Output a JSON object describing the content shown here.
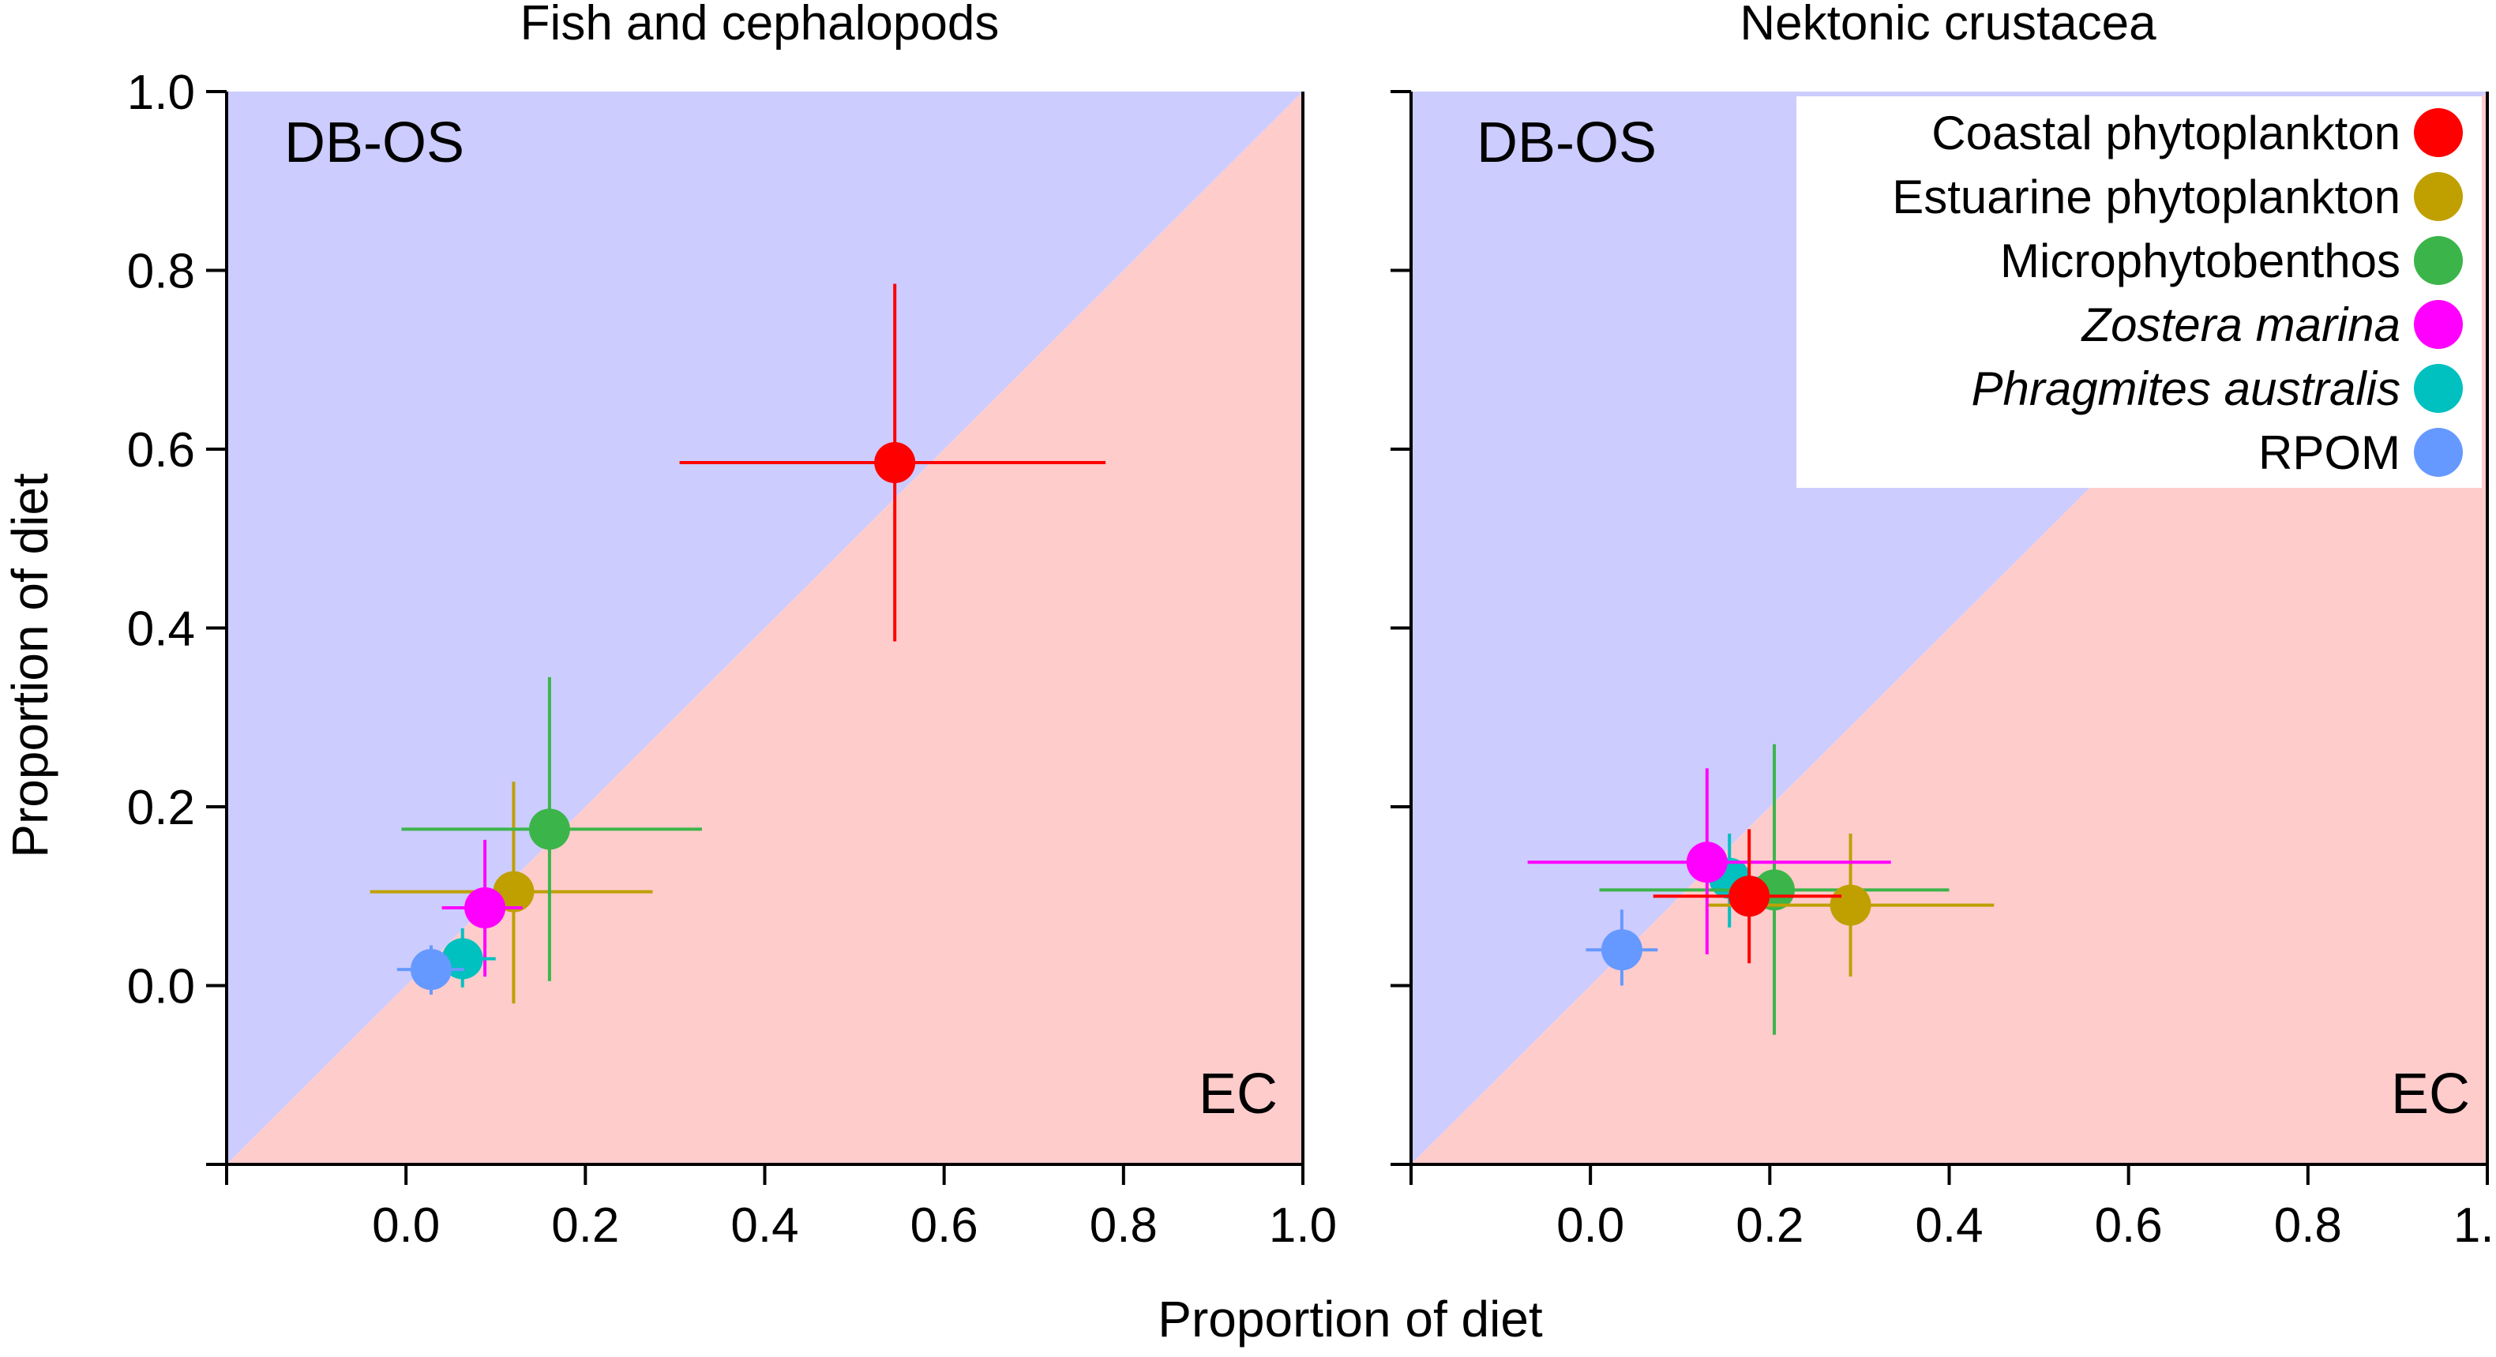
{
  "x_axis_label": "Proportion of diet",
  "y_axis_label": "Proportion of diet",
  "axis_ticks": [
    "0.0",
    "0.2",
    "0.4",
    "0.6",
    "0.8",
    "1.0"
  ],
  "legend": [
    {
      "name": "Coastal phytoplankton",
      "color": "#ff0000",
      "italic": false
    },
    {
      "name": "Estuarine phytoplankton",
      "color": "#bfa000",
      "italic": false
    },
    {
      "name": "Microphytobenthos",
      "color": "#3bb54a",
      "italic": false
    },
    {
      "name": "Zostera marina",
      "color": "#ff00ff",
      "italic": true
    },
    {
      "name": "Phragmites australis",
      "color": "#00c0c0",
      "italic": true
    },
    {
      "name": "RPOM",
      "color": "#6699ff",
      "italic": false
    }
  ],
  "chart_data": [
    {
      "type": "scatter",
      "title": "Fish and cephalopods",
      "xlabel": "Proportion of diet",
      "ylabel": "Proportion of diet",
      "xlim": [
        -0.2,
        1.0
      ],
      "ylim": [
        -0.2,
        1.0
      ],
      "region_above_label": "DB-OS",
      "region_below_label": "EC",
      "region_above_color": "#ccccff",
      "region_below_color": "#ffcccc",
      "points": [
        {
          "series": "Coastal phytoplankton",
          "x": 0.545,
          "y": 0.585,
          "x_lo": 0.305,
          "x_hi": 0.78,
          "y_lo": 0.385,
          "y_hi": 0.785
        },
        {
          "series": "Estuarine phytoplankton",
          "x": 0.12,
          "y": 0.105,
          "x_lo": -0.04,
          "x_hi": 0.275,
          "y_lo": -0.02,
          "y_hi": 0.228
        },
        {
          "series": "Microphytobenthos",
          "x": 0.16,
          "y": 0.175,
          "x_lo": -0.005,
          "x_hi": 0.33,
          "y_lo": 0.005,
          "y_hi": 0.345
        },
        {
          "series": "Zostera marina",
          "x": 0.088,
          "y": 0.087,
          "x_lo": 0.04,
          "x_hi": 0.13,
          "y_lo": 0.01,
          "y_hi": 0.163
        },
        {
          "series": "Phragmites australis",
          "x": 0.063,
          "y": 0.03,
          "x_lo": 0.04,
          "x_hi": 0.1,
          "y_lo": -0.002,
          "y_hi": 0.064
        },
        {
          "series": "RPOM",
          "x": 0.028,
          "y": 0.018,
          "x_lo": -0.01,
          "x_hi": 0.065,
          "y_lo": -0.01,
          "y_hi": 0.045
        }
      ]
    },
    {
      "type": "scatter",
      "title": "Nektonic crustacea",
      "xlabel": "Proportion of diet",
      "ylabel": "",
      "xlim": [
        -0.2,
        1.0
      ],
      "ylim": [
        -0.2,
        1.0
      ],
      "region_above_label": "DB-OS",
      "region_below_label": "EC",
      "region_above_color": "#ccccff",
      "region_below_color": "#ffcccc",
      "points": [
        {
          "series": "RPOM",
          "x": 0.035,
          "y": 0.04,
          "x_lo": -0.005,
          "x_hi": 0.075,
          "y_lo": 0.0,
          "y_hi": 0.085
        },
        {
          "series": "Phragmites australis",
          "x": 0.155,
          "y": 0.12,
          "x_lo": 0.12,
          "x_hi": 0.195,
          "y_lo": 0.065,
          "y_hi": 0.17
        },
        {
          "series": "Microphytobenthos",
          "x": 0.205,
          "y": 0.107,
          "x_lo": 0.01,
          "x_hi": 0.4,
          "y_lo": -0.055,
          "y_hi": 0.27
        },
        {
          "series": "Estuarine phytoplankton",
          "x": 0.29,
          "y": 0.09,
          "x_lo": 0.13,
          "x_hi": 0.45,
          "y_lo": 0.01,
          "y_hi": 0.17
        },
        {
          "series": "Zostera marina",
          "x": 0.13,
          "y": 0.138,
          "x_lo": -0.07,
          "x_hi": 0.335,
          "y_lo": 0.035,
          "y_hi": 0.243
        },
        {
          "series": "Coastal phytoplankton",
          "x": 0.177,
          "y": 0.1,
          "x_lo": 0.07,
          "x_hi": 0.28,
          "y_lo": 0.025,
          "y_hi": 0.175
        }
      ]
    }
  ]
}
